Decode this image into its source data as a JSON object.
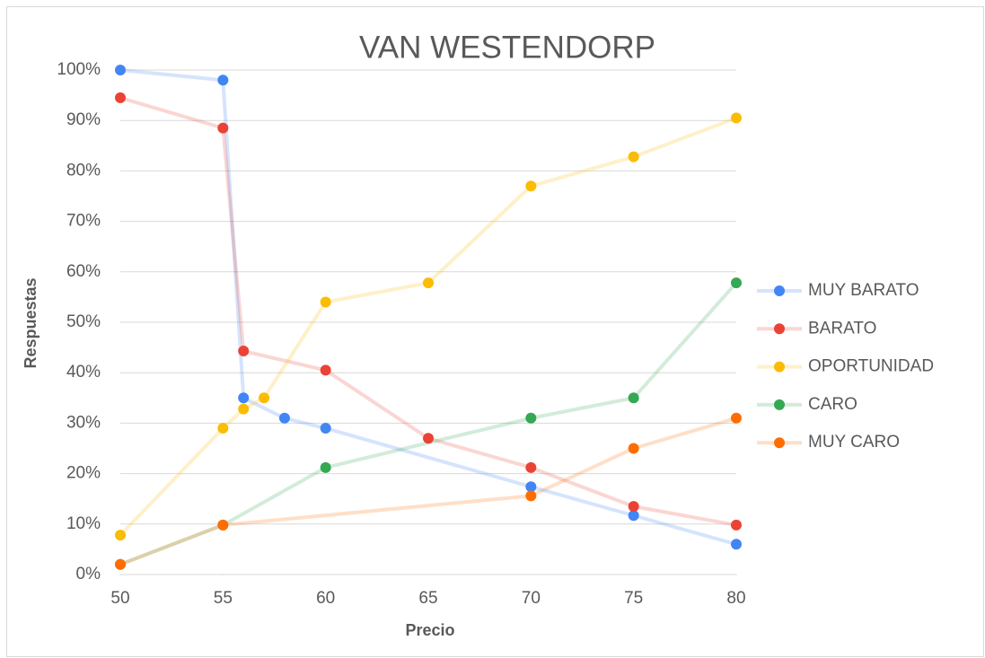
{
  "chart_data": {
    "type": "line",
    "title": "VAN WESTENDORP",
    "x_label": "Precio",
    "y_label": "Respuestas",
    "xlim": [
      50,
      80
    ],
    "xticks": [
      50,
      55,
      60,
      65,
      70,
      75,
      80
    ],
    "ylim": [
      0,
      100
    ],
    "yticks": [
      {
        "value": 0,
        "label": "0%"
      },
      {
        "value": 10,
        "label": "10%"
      },
      {
        "value": 20,
        "label": "20%"
      },
      {
        "value": 30,
        "label": "30%"
      },
      {
        "value": 40,
        "label": "40%"
      },
      {
        "value": 50,
        "label": "50%"
      },
      {
        "value": 60,
        "label": "60%"
      },
      {
        "value": 70,
        "label": "70%"
      },
      {
        "value": 80,
        "label": "80%"
      },
      {
        "value": 90,
        "label": "90%"
      },
      {
        "value": 100,
        "label": "100%"
      }
    ],
    "grid": true,
    "legend": "right",
    "series": [
      {
        "name": "MUY BARATO",
        "color": "#4285f4",
        "x": [
          50,
          55,
          56,
          58,
          60,
          70,
          75,
          80
        ],
        "values": [
          100,
          98,
          35,
          31,
          29,
          17.4,
          11.7,
          6
        ]
      },
      {
        "name": "BARATO",
        "color": "#ea4335",
        "x": [
          50,
          55,
          56,
          60,
          65,
          70,
          75,
          80
        ],
        "values": [
          94.5,
          88.5,
          44.3,
          40.5,
          27,
          21.2,
          13.5,
          9.8
        ]
      },
      {
        "name": "OPORTUNIDAD",
        "color": "#fbbc04",
        "x": [
          50,
          55,
          56,
          57,
          60,
          65,
          70,
          75,
          80
        ],
        "values": [
          7.8,
          29,
          32.8,
          35,
          54,
          57.8,
          77,
          82.8,
          90.5
        ]
      },
      {
        "name": "CARO",
        "color": "#34a853",
        "x": [
          50,
          55,
          60,
          70,
          75,
          80
        ],
        "values": [
          2,
          9.8,
          21.2,
          31,
          35,
          57.8
        ]
      },
      {
        "name": "MUY CARO",
        "color": "#ff6d01",
        "x": [
          50,
          55,
          70,
          75,
          80
        ],
        "values": [
          2,
          9.8,
          15.6,
          25,
          31
        ]
      }
    ]
  }
}
